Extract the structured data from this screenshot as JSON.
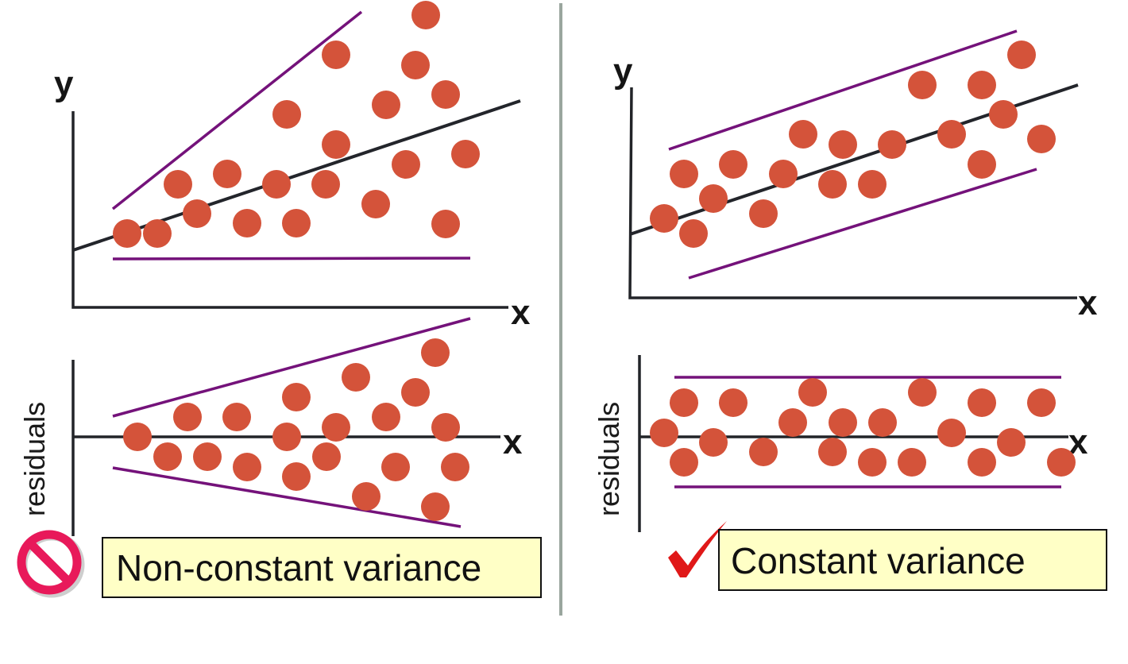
{
  "left_panel": {
    "scatter": {
      "y_label": "y",
      "x_label": "x"
    },
    "residuals": {
      "y_label": "residuals",
      "x_label": "x"
    },
    "caption": "Non-constant variance",
    "status_icon": "no-entry-icon",
    "status_color": "#e8195a"
  },
  "right_panel": {
    "scatter": {
      "y_label": "y",
      "x_label": "x"
    },
    "residuals": {
      "y_label": "residuals",
      "x_label": "x"
    },
    "caption": "Constant variance",
    "status_icon": "checkmark-icon",
    "status_color": "#e01818"
  },
  "colors": {
    "points": "#d4533a",
    "band_lines": "#74127a",
    "fit_line": "#23252b",
    "caption_background": "#ffffc6"
  }
}
